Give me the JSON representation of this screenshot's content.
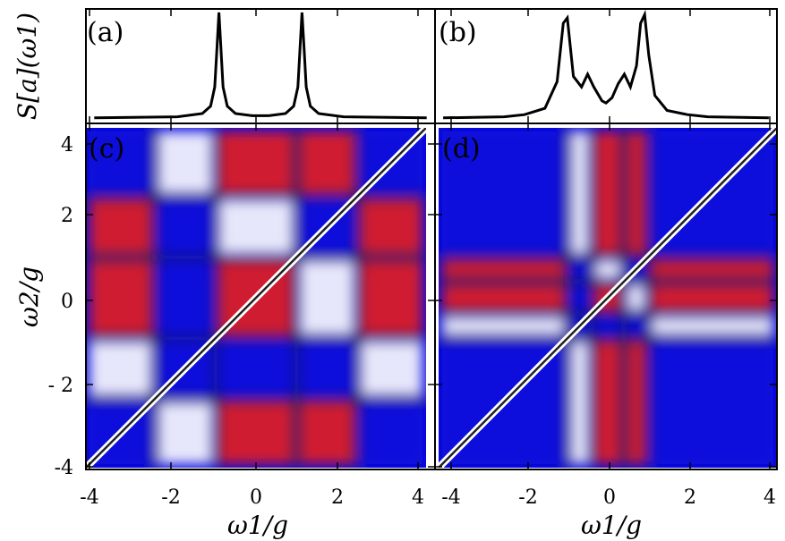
{
  "chart_data": [
    {
      "id": "a",
      "type": "line",
      "panel_label": "(a)",
      "ylabel": "S[a](ω1)",
      "xlim": [
        -4.2,
        4.2
      ],
      "x": [
        -4.0,
        -2.0,
        -1.4,
        -1.2,
        -1.1,
        -1.05,
        -1.0,
        -0.95,
        -0.9,
        -0.8,
        -0.6,
        -0.2,
        0.0,
        0.2,
        0.6,
        0.8,
        0.9,
        0.95,
        1.0,
        1.05,
        1.1,
        1.2,
        1.4,
        2.0,
        4.0
      ],
      "y": [
        0.01,
        0.02,
        0.05,
        0.12,
        0.3,
        0.65,
        1.0,
        0.65,
        0.3,
        0.12,
        0.05,
        0.03,
        0.03,
        0.03,
        0.05,
        0.12,
        0.3,
        0.65,
        1.0,
        0.65,
        0.3,
        0.12,
        0.05,
        0.02,
        0.01
      ]
    },
    {
      "id": "b",
      "type": "line",
      "panel_label": "(b)",
      "xlim": [
        -4.2,
        4.2
      ],
      "x": [
        -4.0,
        -2.5,
        -2.0,
        -1.5,
        -1.2,
        -1.05,
        -0.95,
        -0.8,
        -0.6,
        -0.45,
        -0.3,
        -0.1,
        0.0,
        0.15,
        0.3,
        0.45,
        0.6,
        0.75,
        0.85,
        0.95,
        1.05,
        1.2,
        1.5,
        2.0,
        2.5,
        4.0
      ],
      "y": [
        0.01,
        0.02,
        0.04,
        0.1,
        0.35,
        0.9,
        0.95,
        0.4,
        0.3,
        0.42,
        0.3,
        0.17,
        0.15,
        0.2,
        0.33,
        0.42,
        0.3,
        0.5,
        0.9,
        0.98,
        0.6,
        0.22,
        0.08,
        0.04,
        0.02,
        0.01
      ]
    },
    {
      "id": "c",
      "type": "heatmap",
      "panel_label": "(c)",
      "xlabel": "ω1/g",
      "ylabel": "ω2/g",
      "xlim": [
        -4.2,
        4.2
      ],
      "ylim": [
        -4.2,
        4.2
      ],
      "xticks": [
        -4,
        -2,
        0,
        2,
        4
      ],
      "yticks": [
        -4,
        -2,
        0,
        2,
        4
      ],
      "colors": {
        "positive": "#e51c1c",
        "neutral": "#ffffff",
        "negative": "#0b0bdc",
        "dark": "#222222"
      },
      "peaks": [
        -2.5,
        -1.0,
        1.0,
        2.5
      ]
    },
    {
      "id": "d",
      "type": "heatmap",
      "panel_label": "(d)",
      "xlabel": "ω1/g",
      "xlim": [
        -4.2,
        4.2
      ],
      "ylim": [
        -4.2,
        4.2
      ],
      "xticks": [
        -4,
        -2,
        0,
        2,
        4
      ],
      "colors": {
        "positive": "#e51c1c",
        "neutral": "#ffffff",
        "negative": "#0b0bdc",
        "dark": "#222222"
      },
      "peaks": [
        -1.0,
        -0.4,
        0.4,
        1.0
      ]
    }
  ],
  "tick_text": {
    "x": [
      "-4",
      "-2",
      "0",
      "2",
      "4"
    ],
    "y": [
      "4",
      "2",
      "0",
      "- 2",
      "-4"
    ]
  },
  "labels": {
    "xlabel_left": "ω1/g",
    "xlabel_right": "ω1/g",
    "ylabel_bottom": "ω2/g",
    "ylabel_top": "S[a](ω1)"
  }
}
